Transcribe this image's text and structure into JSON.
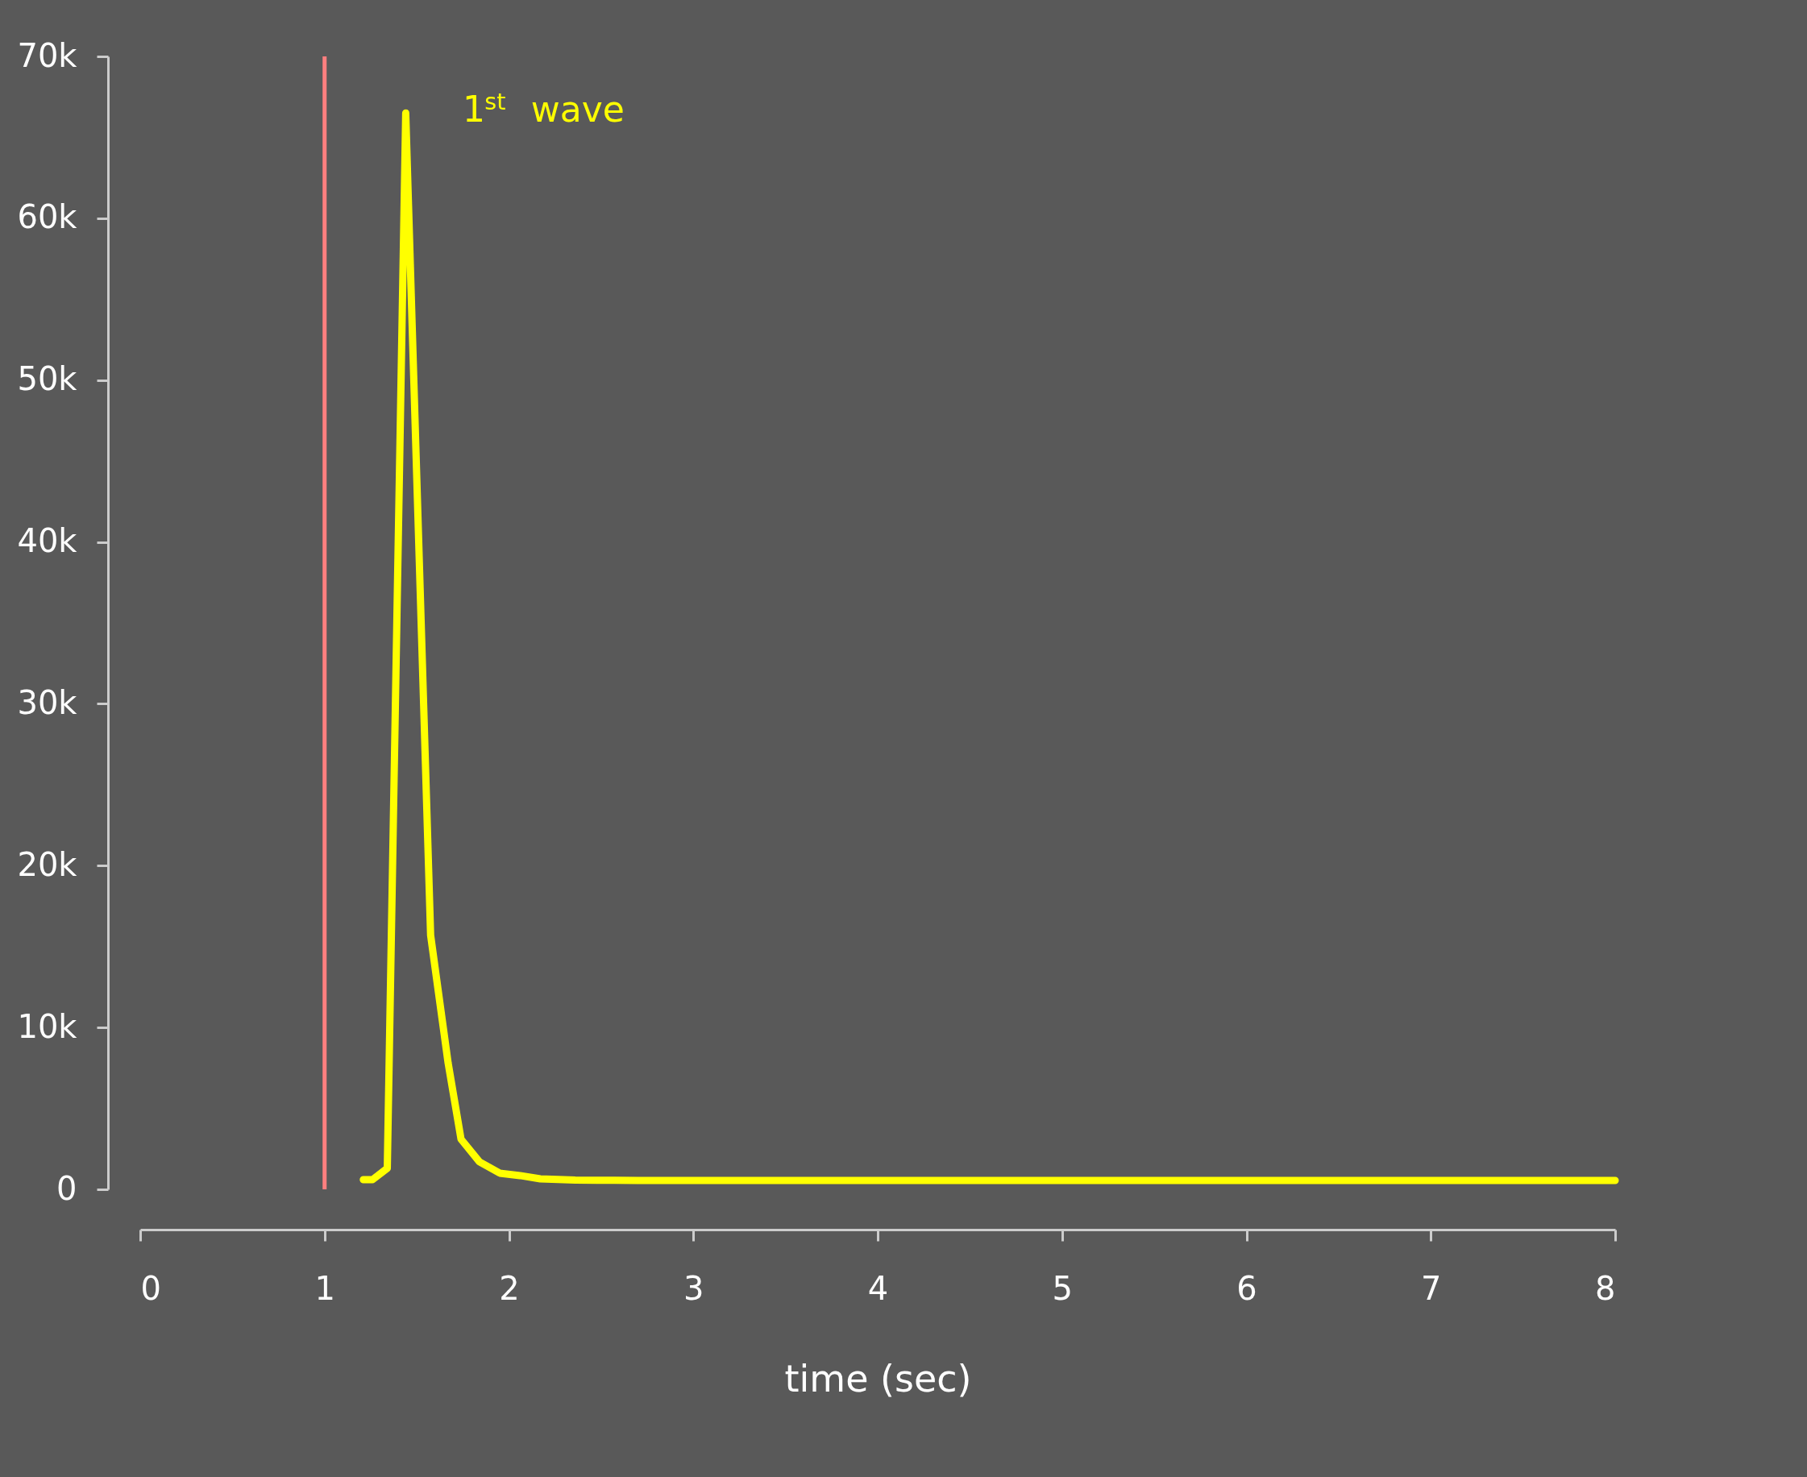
{
  "chart_data": {
    "type": "line",
    "xlabel": "time (sec)",
    "x": [
      1.21,
      1.26,
      1.34,
      1.44,
      1.575,
      1.67,
      1.74,
      1.84,
      1.95,
      2.06,
      2.17,
      2.36,
      2.48,
      2.7,
      3.0,
      4.0,
      5.0,
      6.0,
      7.0,
      8.0
    ],
    "series": [
      {
        "color": "#ffff00",
        "values": [
          600,
          600,
          1300,
          66500,
          15700,
          7800,
          3100,
          1700,
          1000,
          850,
          650,
          570,
          560,
          550,
          550,
          550,
          550,
          550,
          550,
          550
        ]
      }
    ],
    "xlim": [
      0,
      8
    ],
    "xticks": [
      0,
      1,
      2,
      3,
      4,
      5,
      6,
      7,
      8
    ],
    "ylim": [
      0,
      70000
    ],
    "yticks": [
      0,
      {
        "value": 10000,
        "label": "10k"
      },
      {
        "value": 20000,
        "label": "20k"
      },
      {
        "value": 30000,
        "label": "30k"
      },
      {
        "value": 40000,
        "label": "40k"
      },
      {
        "value": 50000,
        "label": "50k"
      },
      {
        "value": 60000,
        "label": "60k"
      },
      {
        "value": 70000,
        "label": "70k"
      }
    ],
    "ref_lines": [
      {
        "axis": "x",
        "value": 1,
        "color": "#ff7f7f"
      }
    ],
    "annotations": [
      "1$^{st}$ wave"
    ],
    "grid": false,
    "marker": "none",
    "line_style": "solid"
  }
}
